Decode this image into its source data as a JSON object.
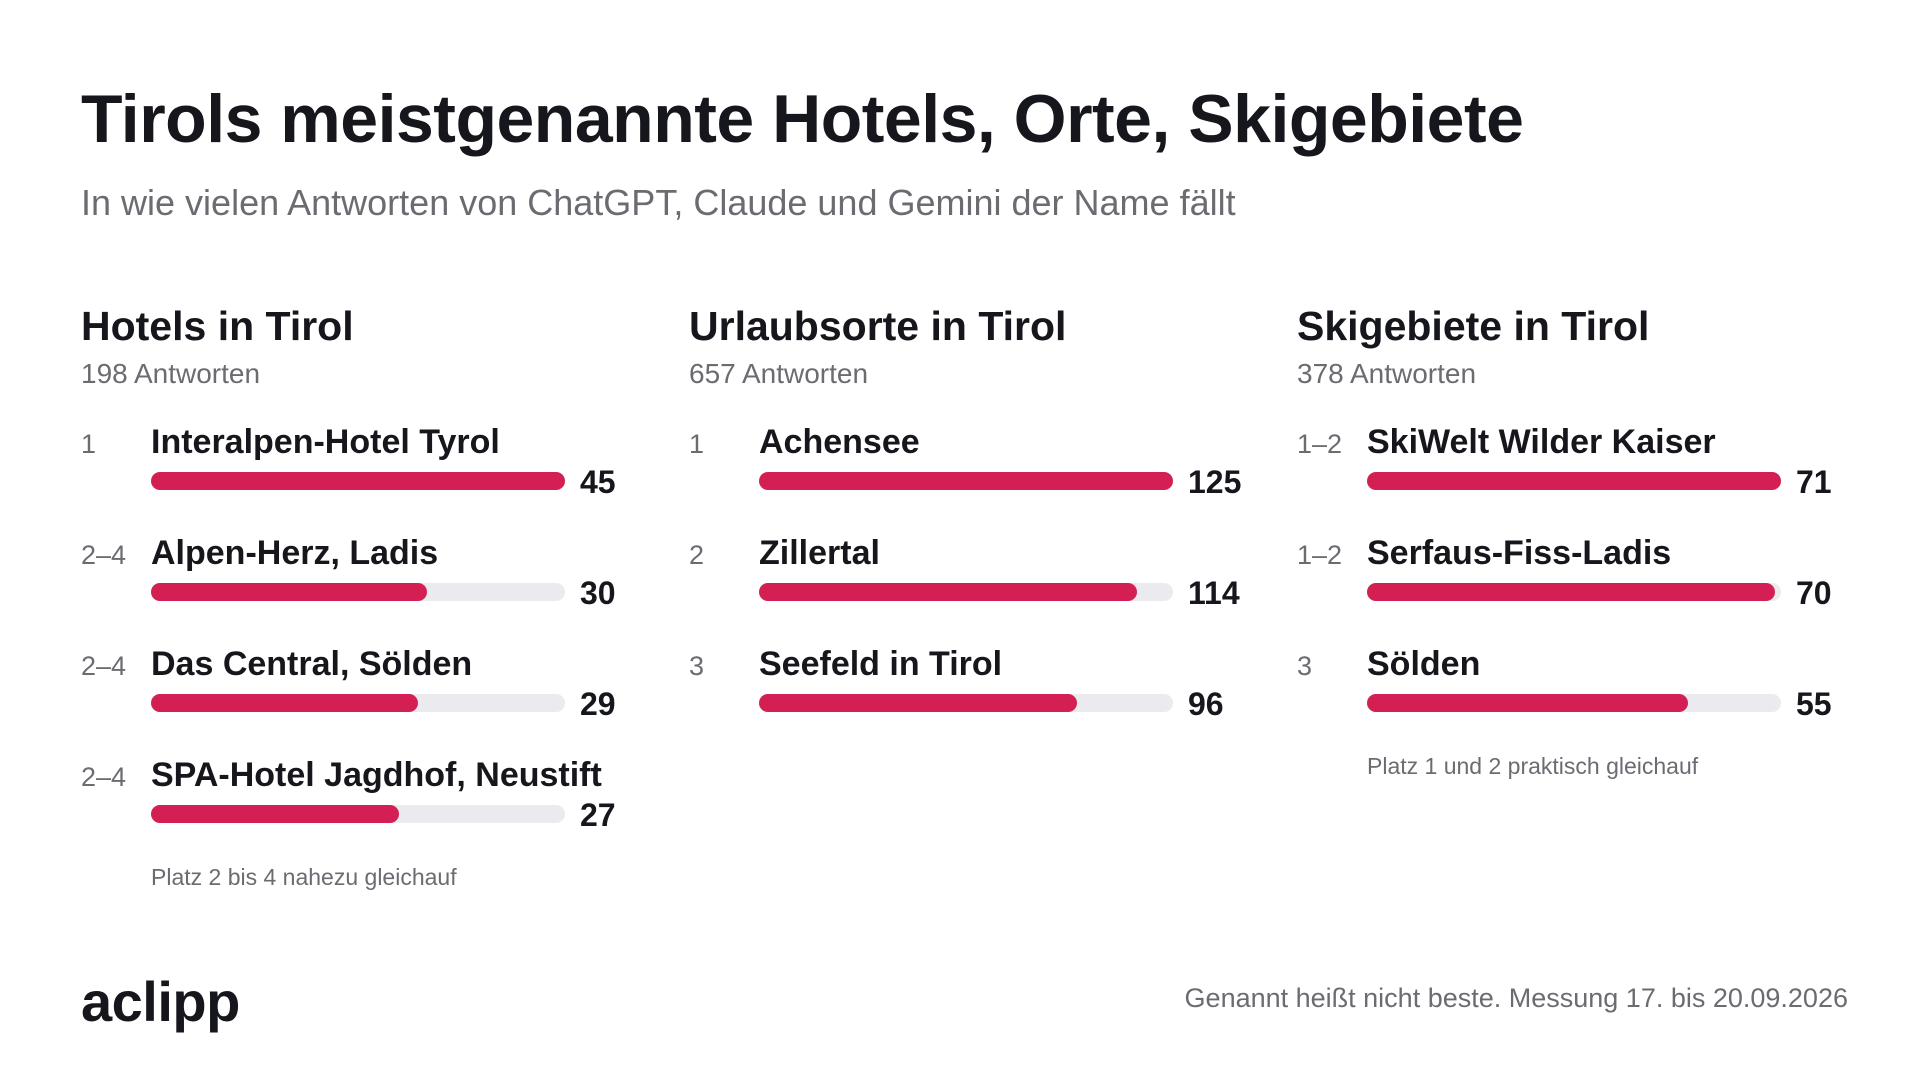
{
  "title": "Tirols meistgenannte Hotels, Orte, Skigebiete",
  "subtitle": "In wie vielen Antworten von ChatGPT, Claude und Gemini der Name fällt",
  "brand": "aclipp",
  "footnote": "Genannt heißt nicht beste. Messung 17. bis 20.09.2026",
  "colors": {
    "bar": "#d41f54",
    "track": "#ebebef",
    "text": "#16161d",
    "muted": "#6b6b72"
  },
  "chart_data": [
    {
      "type": "bar",
      "orientation": "horizontal",
      "title": "Hotels in Tirol",
      "subtitle": "198 Antworten",
      "ranks": [
        "1",
        "2–4",
        "2–4",
        "2–4"
      ],
      "categories": [
        "Interalpen-Hotel Tyrol",
        "Alpen-Herz, Ladis",
        "Das Central, Sölden",
        "SPA-Hotel Jagdhof, Neustift"
      ],
      "values": [
        45,
        30,
        29,
        27
      ],
      "xlim": [
        0,
        45
      ],
      "note": "Platz 2 bis 4 nahezu gleichauf"
    },
    {
      "type": "bar",
      "orientation": "horizontal",
      "title": "Urlaubsorte in Tirol",
      "subtitle": "657 Antworten",
      "ranks": [
        "1",
        "2",
        "3"
      ],
      "categories": [
        "Achensee",
        "Zillertal",
        "Seefeld in Tirol"
      ],
      "values": [
        125,
        114,
        96
      ],
      "xlim": [
        0,
        125
      ],
      "note": ""
    },
    {
      "type": "bar",
      "orientation": "horizontal",
      "title": "Skigebiete in Tirol",
      "subtitle": "378 Antworten",
      "ranks": [
        "1–2",
        "1–2",
        "3"
      ],
      "categories": [
        "SkiWelt Wilder Kaiser",
        "Serfaus-Fiss-Ladis",
        "Sölden"
      ],
      "values": [
        71,
        70,
        55
      ],
      "xlim": [
        0,
        71
      ],
      "note": "Platz 1 und 2 praktisch gleichauf"
    }
  ]
}
